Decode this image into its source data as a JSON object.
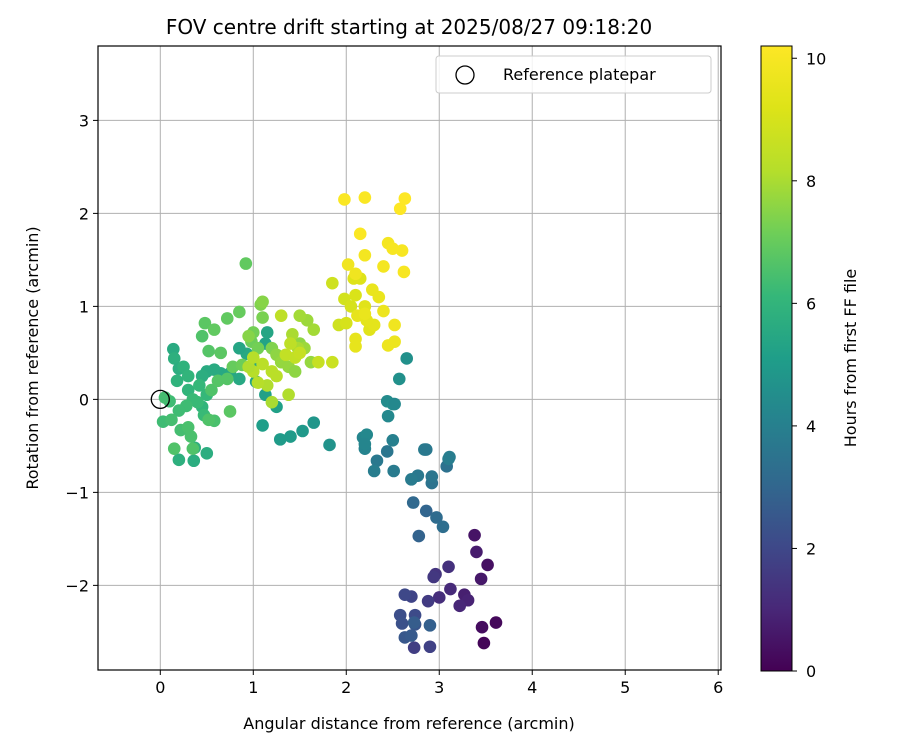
{
  "chart_data": {
    "type": "scatter",
    "title": "FOV centre drift starting at 2025/08/27 09:18:20",
    "xlabel": "Angular distance from reference (arcmin)",
    "ylabel": "Rotation from reference (arcmin)",
    "xlim": [
      -0.67,
      6.03
    ],
    "ylim": [
      -2.91,
      3.8
    ],
    "xticks": [
      0,
      1,
      2,
      3,
      4,
      5,
      6
    ],
    "yticks": [
      -2,
      -1,
      0,
      1,
      2,
      3
    ],
    "grid": true,
    "legend": {
      "position": "top-right",
      "entries": [
        "Reference platepar"
      ]
    },
    "reference_point": {
      "x": 0,
      "y": 0
    },
    "colorbar": {
      "label": "Hours from first FF file",
      "colormap": "viridis",
      "range": [
        0,
        10.2
      ],
      "ticks": [
        0,
        2,
        4,
        6,
        8,
        10
      ]
    },
    "points": [
      {
        "x": 3.48,
        "y": -2.62,
        "c": 0.1
      },
      {
        "x": 3.61,
        "y": -2.4,
        "c": 0.2
      },
      {
        "x": 3.46,
        "y": -2.45,
        "c": 0.3
      },
      {
        "x": 3.52,
        "y": -1.78,
        "c": 0.4
      },
      {
        "x": 3.38,
        "y": -1.46,
        "c": 0.5
      },
      {
        "x": 3.45,
        "y": -1.93,
        "c": 0.6
      },
      {
        "x": 3.4,
        "y": -1.64,
        "c": 0.7
      },
      {
        "x": 3.27,
        "y": -2.1,
        "c": 0.8
      },
      {
        "x": 3.31,
        "y": -2.16,
        "c": 0.9
      },
      {
        "x": 3.22,
        "y": -2.22,
        "c": 1.0
      },
      {
        "x": 3.12,
        "y": -2.04,
        "c": 1.1
      },
      {
        "x": 3.0,
        "y": -2.13,
        "c": 1.2
      },
      {
        "x": 3.1,
        "y": -1.8,
        "c": 1.3
      },
      {
        "x": 2.96,
        "y": -1.88,
        "c": 1.4
      },
      {
        "x": 2.94,
        "y": -1.91,
        "c": 1.5
      },
      {
        "x": 2.88,
        "y": -2.17,
        "c": 1.6
      },
      {
        "x": 2.73,
        "y": -2.67,
        "c": 1.7
      },
      {
        "x": 2.9,
        "y": -2.66,
        "c": 1.8
      },
      {
        "x": 2.7,
        "y": -2.12,
        "c": 1.9
      },
      {
        "x": 2.63,
        "y": -2.1,
        "c": 2.0
      },
      {
        "x": 2.74,
        "y": -2.32,
        "c": 2.1
      },
      {
        "x": 2.58,
        "y": -2.32,
        "c": 2.2
      },
      {
        "x": 2.6,
        "y": -2.41,
        "c": 2.3
      },
      {
        "x": 2.74,
        "y": -2.42,
        "c": 2.4
      },
      {
        "x": 2.63,
        "y": -2.56,
        "c": 2.5
      },
      {
        "x": 2.7,
        "y": -2.54,
        "c": 2.6
      },
      {
        "x": 2.73,
        "y": -2.4,
        "c": 2.7
      },
      {
        "x": 2.9,
        "y": -2.43,
        "c": 2.8
      },
      {
        "x": 2.78,
        "y": -1.47,
        "c": 2.9
      },
      {
        "x": 2.86,
        "y": -1.2,
        "c": 3.0
      },
      {
        "x": 2.72,
        "y": -1.11,
        "c": 3.1
      },
      {
        "x": 2.97,
        "y": -1.27,
        "c": 3.2
      },
      {
        "x": 3.04,
        "y": -1.37,
        "c": 3.3
      },
      {
        "x": 3.08,
        "y": -0.72,
        "c": 3.4
      },
      {
        "x": 2.92,
        "y": -0.9,
        "c": 3.5
      },
      {
        "x": 2.92,
        "y": -0.83,
        "c": 3.6
      },
      {
        "x": 2.77,
        "y": -0.82,
        "c": 3.7
      },
      {
        "x": 2.7,
        "y": -0.86,
        "c": 3.8
      },
      {
        "x": 3.11,
        "y": -0.62,
        "c": 3.9
      },
      {
        "x": 3.1,
        "y": -0.64,
        "c": 3.9
      },
      {
        "x": 2.84,
        "y": -0.54,
        "c": 3.8
      },
      {
        "x": 2.86,
        "y": -0.54,
        "c": 3.7
      },
      {
        "x": 2.51,
        "y": -0.77,
        "c": 3.8
      },
      {
        "x": 2.44,
        "y": -0.56,
        "c": 3.6
      },
      {
        "x": 2.33,
        "y": -0.66,
        "c": 3.7
      },
      {
        "x": 2.3,
        "y": -0.77,
        "c": 3.9
      },
      {
        "x": 2.5,
        "y": -0.44,
        "c": 4.0
      },
      {
        "x": 2.2,
        "y": -0.53,
        "c": 4.1
      },
      {
        "x": 2.18,
        "y": -0.41,
        "c": 4.2
      },
      {
        "x": 2.22,
        "y": -0.38,
        "c": 4.3
      },
      {
        "x": 2.2,
        "y": -0.48,
        "c": 4.2
      },
      {
        "x": 2.45,
        "y": -0.18,
        "c": 4.3
      },
      {
        "x": 2.44,
        "y": -0.02,
        "c": 4.4
      },
      {
        "x": 2.5,
        "y": -0.05,
        "c": 4.5
      },
      {
        "x": 2.52,
        "y": -0.05,
        "c": 4.3
      },
      {
        "x": 2.57,
        "y": 0.22,
        "c": 4.6
      },
      {
        "x": 2.65,
        "y": 0.44,
        "c": 4.6
      },
      {
        "x": 1.82,
        "y": -0.49,
        "c": 4.7
      },
      {
        "x": 1.65,
        "y": -0.25,
        "c": 4.8
      },
      {
        "x": 1.53,
        "y": -0.34,
        "c": 4.9
      },
      {
        "x": 1.4,
        "y": -0.4,
        "c": 5.0
      },
      {
        "x": 1.29,
        "y": -0.43,
        "c": 5.0
      },
      {
        "x": 1.1,
        "y": -0.28,
        "c": 5.1
      },
      {
        "x": 1.25,
        "y": -0.08,
        "c": 5.2
      },
      {
        "x": 1.13,
        "y": 0.05,
        "c": 5.2
      },
      {
        "x": 1.03,
        "y": 0.19,
        "c": 5.3
      },
      {
        "x": 1.13,
        "y": 0.6,
        "c": 5.3
      },
      {
        "x": 1.15,
        "y": 0.72,
        "c": 5.4
      },
      {
        "x": 1.0,
        "y": 0.36,
        "c": 5.4
      },
      {
        "x": 0.93,
        "y": 0.49,
        "c": 5.5
      },
      {
        "x": 0.85,
        "y": 0.55,
        "c": 5.4
      },
      {
        "x": 0.75,
        "y": 0.28,
        "c": 5.5
      },
      {
        "x": 0.85,
        "y": 0.22,
        "c": 5.5
      },
      {
        "x": 0.65,
        "y": 0.28,
        "c": 5.5
      },
      {
        "x": 0.58,
        "y": 0.32,
        "c": 5.6
      },
      {
        "x": 0.5,
        "y": 0.3,
        "c": 5.6
      },
      {
        "x": 0.45,
        "y": 0.25,
        "c": 5.7
      },
      {
        "x": 0.5,
        "y": -0.58,
        "c": 5.7
      },
      {
        "x": 0.36,
        "y": -0.66,
        "c": 5.7
      },
      {
        "x": 0.2,
        "y": -0.65,
        "c": 5.8
      },
      {
        "x": 0.37,
        "y": -0.52,
        "c": 5.8
      },
      {
        "x": 0.14,
        "y": 0.54,
        "c": 5.6
      },
      {
        "x": 0.15,
        "y": 0.44,
        "c": 5.8
      },
      {
        "x": 0.2,
        "y": 0.33,
        "c": 5.7
      },
      {
        "x": 0.18,
        "y": 0.2,
        "c": 5.9
      },
      {
        "x": 0.25,
        "y": 0.35,
        "c": 5.9
      },
      {
        "x": 0.3,
        "y": 0.25,
        "c": 6.0
      },
      {
        "x": 0.3,
        "y": 0.1,
        "c": 6.0
      },
      {
        "x": 0.42,
        "y": 0.15,
        "c": 6.1
      },
      {
        "x": 0.5,
        "y": 0.05,
        "c": 6.1
      },
      {
        "x": 0.45,
        "y": -0.08,
        "c": 6.0
      },
      {
        "x": 0.47,
        "y": -0.17,
        "c": 6.2
      },
      {
        "x": 0.4,
        "y": -0.03,
        "c": 6.2
      },
      {
        "x": 0.35,
        "y": 0.0,
        "c": 6.2
      },
      {
        "x": 0.28,
        "y": -0.07,
        "c": 6.3
      },
      {
        "x": 0.2,
        "y": -0.12,
        "c": 6.3
      },
      {
        "x": 0.1,
        "y": -0.02,
        "c": 6.3
      },
      {
        "x": 0.05,
        "y": 0.02,
        "c": 6.4
      },
      {
        "x": 0.03,
        "y": -0.24,
        "c": 6.3
      },
      {
        "x": 0.12,
        "y": -0.22,
        "c": 6.4
      },
      {
        "x": 0.22,
        "y": -0.33,
        "c": 6.4
      },
      {
        "x": 0.3,
        "y": -0.3,
        "c": 6.5
      },
      {
        "x": 0.33,
        "y": -0.4,
        "c": 6.5
      },
      {
        "x": 0.35,
        "y": -0.53,
        "c": 6.6
      },
      {
        "x": 0.15,
        "y": -0.53,
        "c": 6.6
      },
      {
        "x": 0.58,
        "y": -0.23,
        "c": 6.5
      },
      {
        "x": 0.52,
        "y": -0.22,
        "c": 6.6
      },
      {
        "x": 0.55,
        "y": 0.1,
        "c": 6.6
      },
      {
        "x": 0.62,
        "y": 0.2,
        "c": 6.7
      },
      {
        "x": 0.72,
        "y": 0.22,
        "c": 6.7
      },
      {
        "x": 0.75,
        "y": -0.13,
        "c": 6.8
      },
      {
        "x": 0.45,
        "y": 0.68,
        "c": 6.6
      },
      {
        "x": 0.48,
        "y": 0.82,
        "c": 6.8
      },
      {
        "x": 0.52,
        "y": 0.52,
        "c": 6.7
      },
      {
        "x": 0.65,
        "y": 0.5,
        "c": 6.8
      },
      {
        "x": 0.58,
        "y": 0.75,
        "c": 6.9
      },
      {
        "x": 0.72,
        "y": 0.87,
        "c": 6.9
      },
      {
        "x": 0.85,
        "y": 0.94,
        "c": 7.0
      },
      {
        "x": 0.92,
        "y": 1.46,
        "c": 6.9
      },
      {
        "x": 0.78,
        "y": 0.35,
        "c": 7.0
      },
      {
        "x": 0.88,
        "y": 0.37,
        "c": 7.1
      },
      {
        "x": 0.98,
        "y": 0.62,
        "c": 7.1
      },
      {
        "x": 1.05,
        "y": 0.55,
        "c": 7.2
      },
      {
        "x": 1.0,
        "y": 0.72,
        "c": 7.2
      },
      {
        "x": 1.1,
        "y": 0.88,
        "c": 7.3
      },
      {
        "x": 1.08,
        "y": 1.02,
        "c": 7.4
      },
      {
        "x": 1.1,
        "y": 1.05,
        "c": 7.5
      },
      {
        "x": 0.95,
        "y": 0.68,
        "c": 7.5
      },
      {
        "x": 1.2,
        "y": 0.55,
        "c": 7.4
      },
      {
        "x": 1.25,
        "y": 0.48,
        "c": 7.6
      },
      {
        "x": 1.3,
        "y": 0.4,
        "c": 7.7
      },
      {
        "x": 1.38,
        "y": 0.35,
        "c": 7.7
      },
      {
        "x": 1.45,
        "y": 0.3,
        "c": 7.6
      },
      {
        "x": 1.5,
        "y": 0.6,
        "c": 7.6
      },
      {
        "x": 1.55,
        "y": 0.55,
        "c": 7.8
      },
      {
        "x": 1.62,
        "y": 0.4,
        "c": 7.7
      },
      {
        "x": 1.65,
        "y": 0.75,
        "c": 7.9
      },
      {
        "x": 1.58,
        "y": 0.85,
        "c": 7.8
      },
      {
        "x": 1.5,
        "y": 0.9,
        "c": 7.9
      },
      {
        "x": 1.42,
        "y": 0.7,
        "c": 8.0
      },
      {
        "x": 1.48,
        "y": 0.55,
        "c": 8.0
      },
      {
        "x": 1.38,
        "y": 0.05,
        "c": 8.1
      },
      {
        "x": 1.2,
        "y": -0.03,
        "c": 8.0
      },
      {
        "x": 1.15,
        "y": 0.15,
        "c": 8.1
      },
      {
        "x": 1.05,
        "y": 0.18,
        "c": 8.2
      },
      {
        "x": 1.0,
        "y": 0.3,
        "c": 8.2
      },
      {
        "x": 0.95,
        "y": 0.35,
        "c": 8.1
      },
      {
        "x": 1.0,
        "y": 0.45,
        "c": 8.2
      },
      {
        "x": 1.1,
        "y": 0.38,
        "c": 8.3
      },
      {
        "x": 1.2,
        "y": 0.3,
        "c": 8.3
      },
      {
        "x": 1.25,
        "y": 0.25,
        "c": 8.3
      },
      {
        "x": 1.3,
        "y": 0.9,
        "c": 8.4
      },
      {
        "x": 1.4,
        "y": 0.6,
        "c": 8.4
      },
      {
        "x": 1.35,
        "y": 0.48,
        "c": 8.5
      },
      {
        "x": 1.45,
        "y": 0.45,
        "c": 8.5
      },
      {
        "x": 1.5,
        "y": 0.5,
        "c": 8.6
      },
      {
        "x": 1.7,
        "y": 0.4,
        "c": 8.6
      },
      {
        "x": 1.85,
        "y": 0.4,
        "c": 8.7
      },
      {
        "x": 1.85,
        "y": 1.25,
        "c": 8.8
      },
      {
        "x": 1.92,
        "y": 0.8,
        "c": 8.8
      },
      {
        "x": 1.98,
        "y": 1.08,
        "c": 8.9
      },
      {
        "x": 2.0,
        "y": 0.82,
        "c": 9.0
      },
      {
        "x": 2.05,
        "y": 1.0,
        "c": 9.0
      },
      {
        "x": 2.1,
        "y": 1.12,
        "c": 9.1
      },
      {
        "x": 2.08,
        "y": 1.3,
        "c": 9.2
      },
      {
        "x": 2.15,
        "y": 1.3,
        "c": 9.2
      },
      {
        "x": 2.2,
        "y": 1.0,
        "c": 9.3
      },
      {
        "x": 2.25,
        "y": 0.75,
        "c": 9.3
      },
      {
        "x": 2.3,
        "y": 0.8,
        "c": 9.4
      },
      {
        "x": 2.22,
        "y": 0.85,
        "c": 9.4
      },
      {
        "x": 2.12,
        "y": 0.9,
        "c": 9.5
      },
      {
        "x": 2.1,
        "y": 0.65,
        "c": 9.5
      },
      {
        "x": 2.1,
        "y": 0.57,
        "c": 9.5
      },
      {
        "x": 2.2,
        "y": 0.92,
        "c": 9.6
      },
      {
        "x": 2.28,
        "y": 1.18,
        "c": 9.6
      },
      {
        "x": 2.35,
        "y": 1.1,
        "c": 9.6
      },
      {
        "x": 2.4,
        "y": 0.95,
        "c": 9.7
      },
      {
        "x": 2.45,
        "y": 0.58,
        "c": 9.7
      },
      {
        "x": 2.52,
        "y": 0.62,
        "c": 9.7
      },
      {
        "x": 2.52,
        "y": 0.8,
        "c": 9.8
      },
      {
        "x": 2.02,
        "y": 1.45,
        "c": 9.8
      },
      {
        "x": 2.1,
        "y": 1.35,
        "c": 9.8
      },
      {
        "x": 2.2,
        "y": 1.55,
        "c": 9.9
      },
      {
        "x": 2.4,
        "y": 1.43,
        "c": 9.9
      },
      {
        "x": 2.45,
        "y": 1.68,
        "c": 9.9
      },
      {
        "x": 2.5,
        "y": 1.62,
        "c": 10.0
      },
      {
        "x": 2.6,
        "y": 1.6,
        "c": 10.0
      },
      {
        "x": 2.62,
        "y": 1.37,
        "c": 10.0
      },
      {
        "x": 2.15,
        "y": 1.78,
        "c": 10.1
      },
      {
        "x": 1.98,
        "y": 2.15,
        "c": 10.1
      },
      {
        "x": 2.2,
        "y": 2.17,
        "c": 10.1
      },
      {
        "x": 2.58,
        "y": 2.05,
        "c": 10.2
      },
      {
        "x": 2.63,
        "y": 2.16,
        "c": 10.2
      }
    ]
  }
}
